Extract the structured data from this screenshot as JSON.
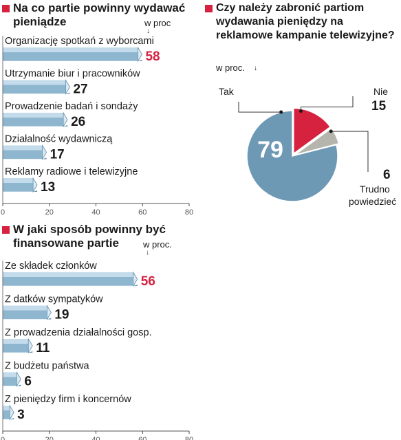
{
  "colors": {
    "accent": "#d6213f",
    "bar_fill": "#8fb6cf",
    "bar_dark": "#5e8fae",
    "bar_light": "#c3dbea",
    "pie_main": "#6e99b5",
    "pie_nie": "#d6213f",
    "pie_trudno": "#b5b5ad"
  },
  "chart_data": [
    {
      "type": "bar",
      "title": "Na co partie powinny wydawać pieniądze",
      "unit_label": "w proc",
      "categories": [
        "Organizację spotkań z wyborcami",
        "Utrzymanie biur i pracowników",
        "Prowadzenie badań i sondaży",
        "Działalność wydawniczą",
        "Reklamy radiowe i telewizyjne"
      ],
      "values": [
        58,
        27,
        26,
        17,
        13
      ],
      "value_labels": [
        "58",
        "27",
        "26",
        "17",
        "13"
      ],
      "highlight": [
        true,
        false,
        false,
        false,
        false
      ],
      "xlim": [
        0,
        80
      ],
      "ticks": [
        "0",
        "20",
        "40",
        "60",
        "80"
      ],
      "orientation": "horizontal"
    },
    {
      "type": "bar",
      "title": "W jaki sposób powinny być finansowane partie",
      "unit_label": "w proc.",
      "categories": [
        "Ze składek członków",
        "Z datków sympatyków",
        "Z prowadzenia działalności gosp.",
        "Z budżetu państwa",
        "Z pieniędzy firm i koncernów"
      ],
      "values": [
        56,
        19,
        11,
        6,
        3
      ],
      "value_labels": [
        "56",
        "19",
        "11",
        "6",
        "3"
      ],
      "highlight": [
        true,
        false,
        false,
        false,
        false
      ],
      "xlim": [
        0,
        80
      ],
      "ticks": [
        "0",
        "20",
        "40",
        "60",
        "80"
      ],
      "orientation": "horizontal"
    },
    {
      "type": "pie",
      "title": "Czy należy zabronić partiom wydawania pieniędzy na reklamowe kampanie telewizyjne?",
      "unit_label": "w proc.",
      "slices": [
        {
          "label": "Tak",
          "value": 79,
          "value_label": "79"
        },
        {
          "label": "Nie",
          "value": 15,
          "value_label": "15"
        },
        {
          "label": "Trudno powiedzieć",
          "value": 6,
          "value_label": "6"
        }
      ]
    }
  ]
}
